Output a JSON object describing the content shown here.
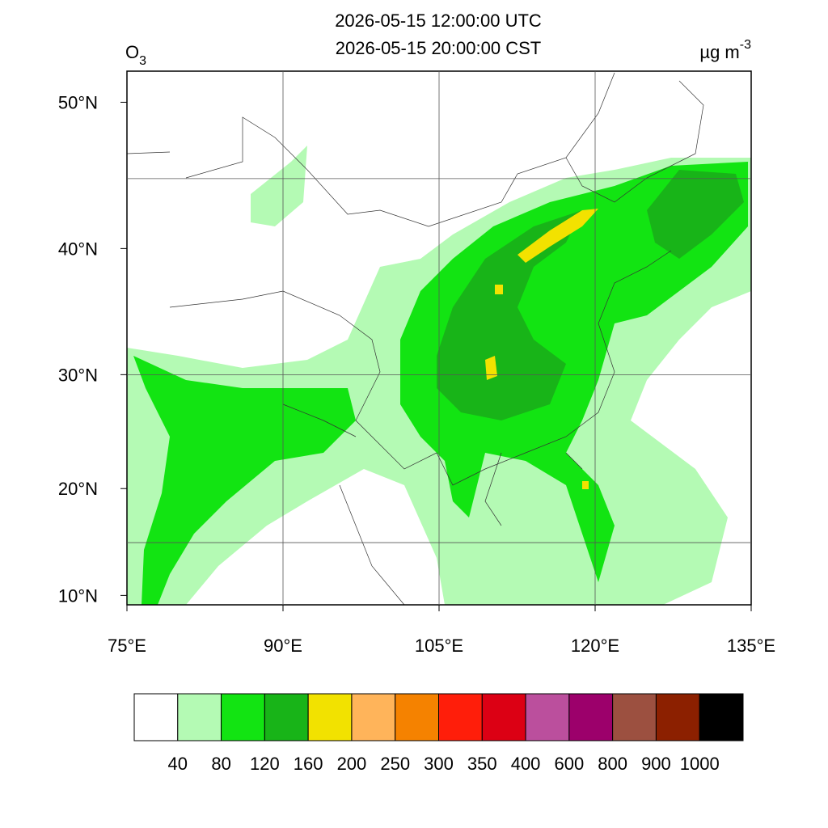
{
  "header": {
    "title_lines": [
      "2026-05-15 12:00:00 UTC",
      "2026-05-15 20:00:00 CST"
    ],
    "variable": {
      "name": "O",
      "subscript": "3"
    },
    "units": {
      "text": "µg m",
      "superscript": "-3"
    }
  },
  "map": {
    "projection": "mercator",
    "xlim": [
      75,
      135
    ],
    "ylim": [
      9.1,
      51.9
    ],
    "xticks": [
      {
        "value": 75,
        "label": "75°E"
      },
      {
        "value": 90,
        "label": "90°E"
      },
      {
        "value": 105,
        "label": "105°E"
      },
      {
        "value": 120,
        "label": "120°E"
      },
      {
        "value": 135,
        "label": "135°E"
      }
    ],
    "yticks": [
      {
        "value": 10,
        "label": "10°N"
      },
      {
        "value": 20,
        "label": "20°N"
      },
      {
        "value": 30,
        "label": "30°N"
      },
      {
        "value": 40,
        "label": "40°N"
      },
      {
        "value": 50,
        "label": "50°N"
      }
    ],
    "grid_lon": [
      90,
      105,
      120
    ],
    "grid_lat": [
      15,
      30,
      45
    ]
  },
  "colorbar": {
    "colors": [
      "#ffffff",
      "#b4fab4",
      "#12e412",
      "#18b418",
      "#f2e200",
      "#ffb45a",
      "#f58200",
      "#ff1e0a",
      "#dc0014",
      "#bb4f9d",
      "#9c006b",
      "#9c5040",
      "#8c2000",
      "#000000"
    ],
    "levels": [
      40,
      80,
      120,
      160,
      200,
      250,
      300,
      350,
      400,
      600,
      800,
      900,
      1000
    ]
  }
}
